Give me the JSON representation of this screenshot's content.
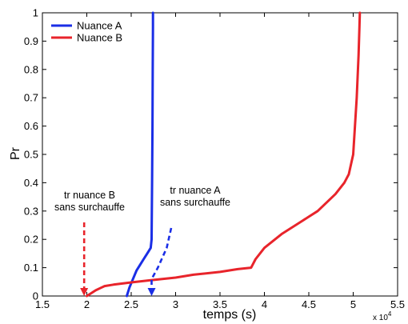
{
  "chart_data": {
    "type": "line",
    "xlabel": "temps (s)",
    "ylabel": "Pr",
    "x_multiplier": "x 10",
    "x_multiplier_exp": "4",
    "xlim": [
      1.5,
      5.5
    ],
    "ylim": [
      0,
      1
    ],
    "xticks": [
      "1.5",
      "2",
      "2.5",
      "3",
      "3.5",
      "4",
      "4.5",
      "5",
      "5.5"
    ],
    "yticks": [
      "0",
      "0.1",
      "0.2",
      "0.3",
      "0.4",
      "0.5",
      "0.6",
      "0.7",
      "0.8",
      "0.9",
      "1"
    ],
    "grid": false,
    "legend_position": "top-left",
    "series": [
      {
        "name": "Nuance A",
        "color": "#1a2ee6",
        "x": [
          2.45,
          2.48,
          2.52,
          2.56,
          2.6,
          2.64,
          2.68,
          2.7,
          2.72,
          2.73,
          2.735,
          2.74,
          2.742,
          2.745,
          2.745
        ],
        "y": [
          0.0,
          0.03,
          0.06,
          0.09,
          0.11,
          0.13,
          0.15,
          0.16,
          0.17,
          0.2,
          0.4,
          0.6,
          0.8,
          0.95,
          1.0
        ]
      },
      {
        "name": "Nuance B",
        "color": "#e8242b",
        "x": [
          2.0,
          2.05,
          2.1,
          2.2,
          2.3,
          2.5,
          2.7,
          3.0,
          3.2,
          3.5,
          3.7,
          3.85,
          3.9,
          4.0,
          4.2,
          4.4,
          4.5,
          4.6,
          4.7,
          4.8,
          4.9,
          4.95,
          5.0,
          5.02,
          5.04,
          5.06,
          5.07,
          5.075
        ],
        "y": [
          0.0,
          0.01,
          0.02,
          0.035,
          0.04,
          0.048,
          0.055,
          0.065,
          0.075,
          0.085,
          0.095,
          0.1,
          0.13,
          0.17,
          0.22,
          0.26,
          0.28,
          0.3,
          0.33,
          0.36,
          0.4,
          0.43,
          0.5,
          0.6,
          0.7,
          0.85,
          0.95,
          1.0
        ]
      }
    ],
    "reference_lines": [
      {
        "color": "#1a2ee6",
        "x": [
          2.95,
          2.9,
          2.8,
          2.73,
          2.73
        ],
        "y": [
          0.24,
          0.17,
          0.1,
          0.06,
          0.0
        ]
      },
      {
        "color": "#e8242b",
        "x": [
          1.97,
          1.97
        ],
        "y": [
          0.26,
          0.0
        ]
      }
    ],
    "annotations": [
      {
        "id": "b",
        "lines": [
          "tr nuance B",
          "sans surchauffe"
        ],
        "color": "#e8242b"
      },
      {
        "id": "a",
        "lines": [
          "tr nuance A",
          "sans surchauffe"
        ],
        "color": "#1a2ee6"
      }
    ]
  }
}
